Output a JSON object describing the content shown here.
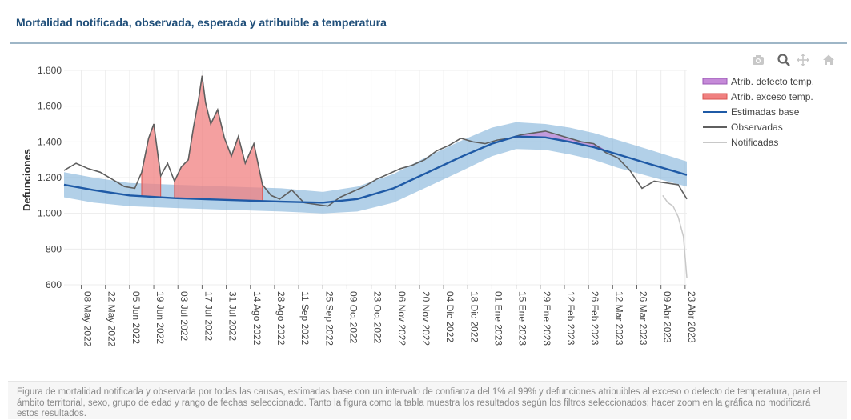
{
  "page": {
    "title": "Mortalidad notificada, observada, esperada y atribuible a temperatura",
    "footnote": "Figura de mortalidad notificada y observada por todas las causas, estimadas base con un intervalo de confianza del 1% al 99% y defunciones atribuibles al exceso o defecto de temperatura, para el ámbito territorial, sexo, grupo de edad y rango de fechas seleccionado. Tanto la figura como la tabla muestra los resultados según los filtros seleccionados; hacer zoom en la gráfica no modificará estos resultados."
  },
  "toolbar": {
    "icons": [
      "camera-icon",
      "zoom-icon",
      "pan-icon",
      "home-icon"
    ],
    "colors": {
      "idle": "#c8c8c8",
      "active": "#666666"
    }
  },
  "chart_data": {
    "type": "line",
    "title": "Mortalidad notificada, observada, esperada y atribuible a temperatura",
    "xlabel": "",
    "ylabel": "Defunciones",
    "x_range": [
      "2022-04-28",
      "2023-04-24"
    ],
    "ylim": [
      600,
      1800
    ],
    "yticks": [
      600,
      800,
      1000,
      1200,
      1400,
      1600,
      1800
    ],
    "ytick_labels": [
      "600",
      "800",
      "1.000",
      "1.200",
      "1.400",
      "1.600",
      "1.800"
    ],
    "xticks": [
      "2022-05-08",
      "2022-05-22",
      "2022-06-05",
      "2022-06-19",
      "2022-07-03",
      "2022-07-17",
      "2022-07-31",
      "2022-08-14",
      "2022-08-28",
      "2022-09-11",
      "2022-09-25",
      "2022-10-09",
      "2022-10-23",
      "2022-11-06",
      "2022-11-20",
      "2022-12-04",
      "2022-12-18",
      "2023-01-01",
      "2023-01-15",
      "2023-01-29",
      "2023-02-12",
      "2023-02-26",
      "2023-03-12",
      "2023-03-26",
      "2023-04-09",
      "2023-04-23"
    ],
    "xtick_labels": [
      "08 May 2022",
      "22 May 2022",
      "05 Jun 2022",
      "19 Jun 2022",
      "03 Jul 2022",
      "17 Jul 2022",
      "31 Jul 2022",
      "14 Ago 2022",
      "28 Ago 2022",
      "11 Sep 2022",
      "25 Sep 2022",
      "09 Oct 2022",
      "23 Oct 2022",
      "06 Nov 2022",
      "20 Nov 2022",
      "04 Dic 2022",
      "18 Dic 2022",
      "01 Ene 2023",
      "15 Ene 2023",
      "29 Ene 2023",
      "12 Feb 2023",
      "26 Feb 2023",
      "12 Mar 2023",
      "26 Mar 2023",
      "09 Abr 2023",
      "23 Abr 2023"
    ],
    "grid": true,
    "legend_position": "top-right",
    "colors": {
      "band": "#7fb0d9",
      "base": "#1f5aa6",
      "observed": "#5f5f5f",
      "reported": "#c8c8c8",
      "excess_fill": "#f08080",
      "excess_line": "#d9534f",
      "deficit_fill": "#c58ad8",
      "deficit_line": "#9b59b6"
    },
    "series": [
      {
        "name": "Atrib. defecto temp.",
        "kind": "deficit"
      },
      {
        "name": "Atrib. exceso temp.",
        "kind": "excess"
      },
      {
        "name": "Estimadas base",
        "kind": "base",
        "x": [
          "2022-04-28",
          "2022-05-15",
          "2022-06-05",
          "2022-07-01",
          "2022-08-01",
          "2022-09-01",
          "2022-09-25",
          "2022-10-15",
          "2022-11-05",
          "2022-11-25",
          "2022-12-15",
          "2023-01-01",
          "2023-01-15",
          "2023-02-01",
          "2023-02-15",
          "2023-03-01",
          "2023-03-15",
          "2023-04-01",
          "2023-04-24"
        ],
        "values": [
          1160,
          1130,
          1100,
          1085,
          1075,
          1065,
          1060,
          1080,
          1140,
          1230,
          1320,
          1390,
          1430,
          1425,
          1400,
          1370,
          1330,
          1280,
          1215
        ],
        "band_lower": [
          1090,
          1060,
          1040,
          1030,
          1020,
          1010,
          1000,
          1010,
          1060,
          1150,
          1240,
          1320,
          1360,
          1355,
          1330,
          1300,
          1255,
          1210,
          1150
        ],
        "band_upper": [
          1230,
          1200,
          1170,
          1160,
          1150,
          1140,
          1120,
          1150,
          1220,
          1320,
          1410,
          1480,
          1510,
          1500,
          1480,
          1450,
          1410,
          1360,
          1290
        ]
      },
      {
        "name": "Observadas",
        "kind": "observed",
        "x": [
          "2022-04-28",
          "2022-05-05",
          "2022-05-12",
          "2022-05-19",
          "2022-05-26",
          "2022-06-02",
          "2022-06-08",
          "2022-06-12",
          "2022-06-16",
          "2022-06-19",
          "2022-06-23",
          "2022-06-27",
          "2022-07-01",
          "2022-07-05",
          "2022-07-09",
          "2022-07-12",
          "2022-07-15",
          "2022-07-17",
          "2022-07-19",
          "2022-07-22",
          "2022-07-26",
          "2022-07-30",
          "2022-08-03",
          "2022-08-07",
          "2022-08-11",
          "2022-08-16",
          "2022-08-21",
          "2022-08-26",
          "2022-08-31",
          "2022-09-07",
          "2022-09-14",
          "2022-09-21",
          "2022-09-28",
          "2022-10-05",
          "2022-10-12",
          "2022-10-19",
          "2022-10-26",
          "2022-11-02",
          "2022-11-09",
          "2022-11-16",
          "2022-11-23",
          "2022-11-30",
          "2022-12-07",
          "2022-12-14",
          "2022-12-21",
          "2022-12-28",
          "2023-01-04",
          "2023-01-11",
          "2023-01-18",
          "2023-01-25",
          "2023-02-01",
          "2023-02-08",
          "2023-02-15",
          "2023-02-22",
          "2023-03-01",
          "2023-03-08",
          "2023-03-15",
          "2023-03-22",
          "2023-03-29",
          "2023-04-05",
          "2023-04-12",
          "2023-04-19",
          "2023-04-24"
        ],
        "values": [
          1240,
          1280,
          1250,
          1230,
          1190,
          1150,
          1140,
          1230,
          1420,
          1500,
          1210,
          1280,
          1180,
          1260,
          1300,
          1480,
          1640,
          1770,
          1620,
          1500,
          1580,
          1420,
          1320,
          1430,
          1280,
          1390,
          1160,
          1100,
          1080,
          1130,
          1060,
          1050,
          1040,
          1090,
          1120,
          1150,
          1190,
          1220,
          1250,
          1270,
          1300,
          1350,
          1380,
          1420,
          1400,
          1390,
          1410,
          1420,
          1440,
          1450,
          1460,
          1440,
          1420,
          1400,
          1390,
          1340,
          1310,
          1240,
          1140,
          1180,
          1170,
          1160,
          1080
        ]
      },
      {
        "name": "Notificadas",
        "kind": "reported",
        "x": [
          "2023-04-10",
          "2023-04-13",
          "2023-04-16",
          "2023-04-19",
          "2023-04-22",
          "2023-04-24"
        ],
        "values": [
          1100,
          1060,
          1040,
          980,
          870,
          640
        ]
      }
    ]
  }
}
